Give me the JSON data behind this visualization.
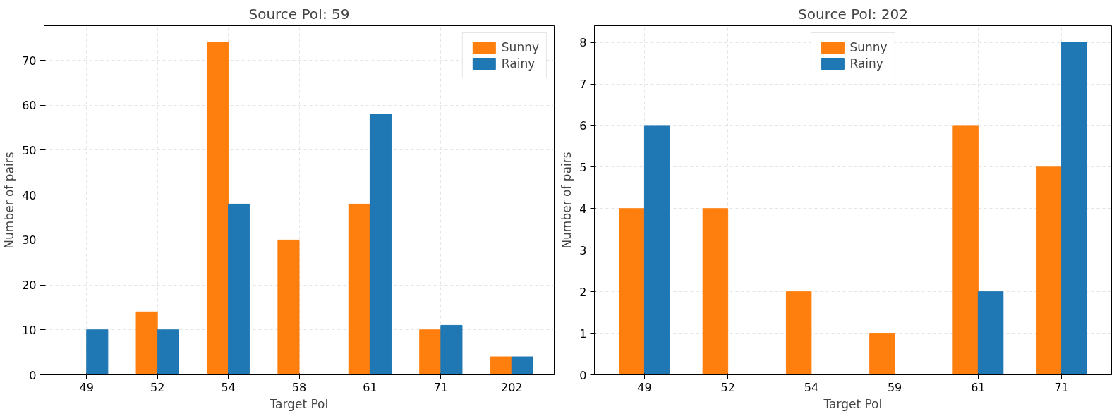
{
  "chart_data": [
    {
      "type": "bar",
      "title": "Source PoI: 59",
      "xlabel": "Target PoI",
      "ylabel": "Number of pairs",
      "categories": [
        "49",
        "52",
        "54",
        "58",
        "61",
        "71",
        "202"
      ],
      "series": [
        {
          "name": "Sunny",
          "color": "#ff7f0e",
          "values": [
            0,
            14,
            74,
            30,
            38,
            10,
            4
          ]
        },
        {
          "name": "Rainy",
          "color": "#1f77b4",
          "values": [
            10,
            10,
            38,
            0,
            58,
            11,
            4
          ]
        }
      ],
      "ylim": [
        0,
        77.7
      ],
      "yticks": [
        0,
        10,
        20,
        30,
        40,
        50,
        60,
        70
      ],
      "grid": true,
      "legend": "top right"
    },
    {
      "type": "bar",
      "title": "Source PoI: 202",
      "xlabel": "Target PoI",
      "ylabel": "Number of pairs",
      "categories": [
        "49",
        "52",
        "54",
        "59",
        "61",
        "71"
      ],
      "series": [
        {
          "name": "Sunny",
          "color": "#ff7f0e",
          "values": [
            4,
            4,
            2,
            1,
            6,
            5
          ]
        },
        {
          "name": "Rainy",
          "color": "#1f77b4",
          "values": [
            6,
            0,
            0,
            0,
            2,
            8
          ]
        }
      ],
      "ylim": [
        0,
        8.4
      ],
      "yticks": [
        0,
        1,
        2,
        3,
        4,
        5,
        6,
        7,
        8
      ],
      "grid": true,
      "legend": "top"
    }
  ]
}
